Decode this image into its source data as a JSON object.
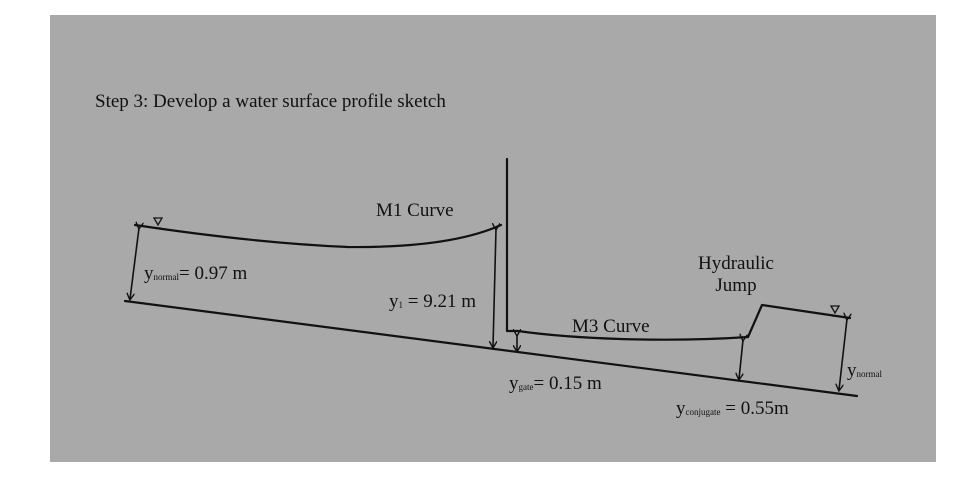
{
  "title": "Step 3: Develop a water surface profile sketch",
  "labels": {
    "m1_curve": "M1 Curve",
    "m3_curve": "M3 Curve",
    "hydraulic_jump_line1": "Hydraulic",
    "hydraulic_jump_line2": "Jump",
    "y_normal_upstream": {
      "symbol": "y",
      "subscript": "normal",
      "value": "= 0.97 m"
    },
    "y1": {
      "symbol": "y",
      "subscript": "1",
      "value": " = 9.21 m"
    },
    "y_gate": {
      "symbol": "y",
      "subscript": "gate",
      "value": "= 0.15 m"
    },
    "y_conjugate": {
      "symbol": "y",
      "subscript": "conjugate",
      "value": " = 0.55m"
    },
    "y_normal_downstream": {
      "symbol": "y",
      "subscript": "normal"
    }
  },
  "colors": {
    "panel": "#a9a9a9",
    "ink": "#111111",
    "page": "#ffffff"
  }
}
